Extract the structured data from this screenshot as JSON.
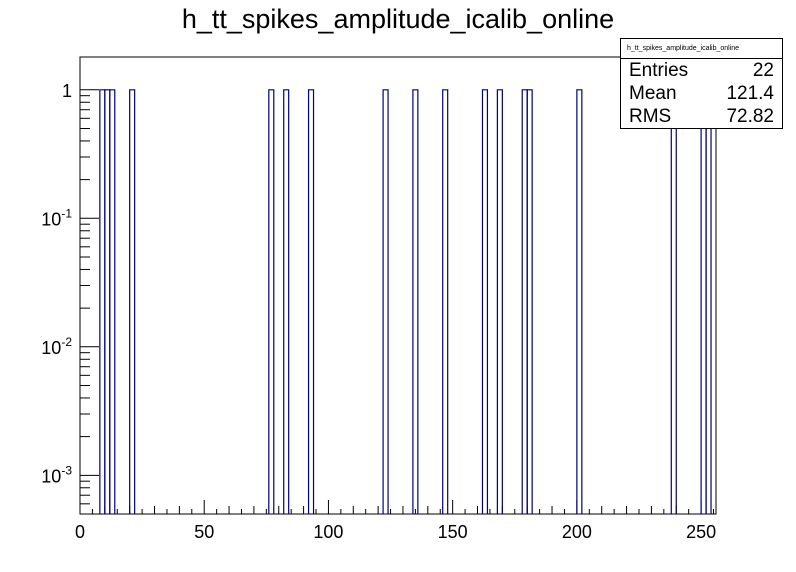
{
  "chart_data": {
    "type": "histogram",
    "title": "h_tt_spikes_amplitude_icalib_online",
    "xlabel": "",
    "ylabel": "",
    "xlim": [
      0,
      256
    ],
    "ylim": [
      0.0005,
      1.8
    ],
    "log_y": true,
    "bin_width": 2,
    "line_color": "#000080",
    "x_ticks": [
      0,
      50,
      100,
      150,
      200,
      250
    ],
    "y_ticks": [
      {
        "value": 0.001,
        "base": "10",
        "exp": "-3"
      },
      {
        "value": 0.01,
        "base": "10",
        "exp": "-2"
      },
      {
        "value": 0.1,
        "base": "10",
        "exp": "-1"
      },
      {
        "value": 1,
        "base": "1",
        "exp": ""
      }
    ],
    "bins": [
      {
        "x": 8,
        "value": 1
      },
      {
        "x": 10,
        "value": 1
      },
      {
        "x": 12,
        "value": 1
      },
      {
        "x": 20,
        "value": 1
      },
      {
        "x": 76,
        "value": 1
      },
      {
        "x": 82,
        "value": 1
      },
      {
        "x": 92,
        "value": 1
      },
      {
        "x": 122,
        "value": 1
      },
      {
        "x": 134,
        "value": 1
      },
      {
        "x": 146,
        "value": 1
      },
      {
        "x": 162,
        "value": 1
      },
      {
        "x": 168,
        "value": 1
      },
      {
        "x": 178,
        "value": 1
      },
      {
        "x": 180,
        "value": 1
      },
      {
        "x": 200,
        "value": 1
      },
      {
        "x": 238,
        "value": 1
      },
      {
        "x": 250,
        "value": 1
      },
      {
        "x": 252,
        "value": 1
      }
    ]
  },
  "stats": {
    "name": "h_tt_spikes_amplitude_icalib_online",
    "entries_label": "Entries",
    "entries": "22",
    "mean_label": "Mean",
    "mean": "121.4",
    "rms_label": "RMS",
    "rms": "72.82"
  }
}
